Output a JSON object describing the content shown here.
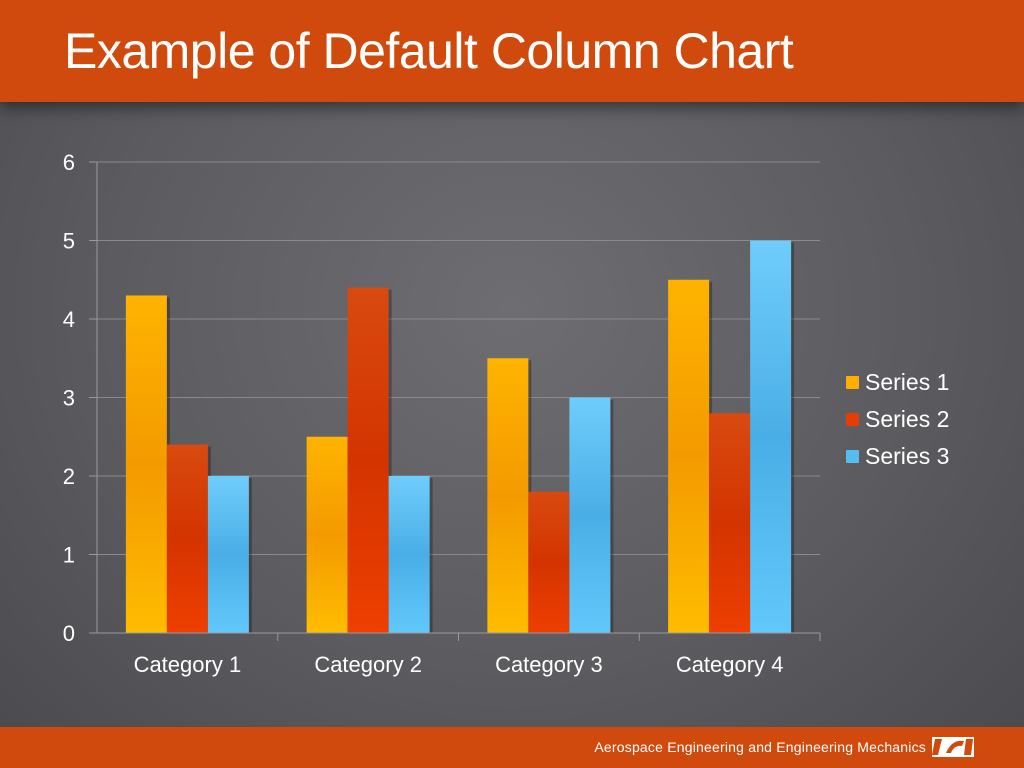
{
  "slide": {
    "title": "Example of Default Column Chart",
    "footer_text": "Aerospace Engineering and Engineering Mechanics",
    "accent_color": "#cf4a0c"
  },
  "chart_data": {
    "type": "bar",
    "title": "",
    "xlabel": "",
    "ylabel": "",
    "categories": [
      "Category 1",
      "Category 2",
      "Category 3",
      "Category 4"
    ],
    "series": [
      {
        "name": "Series 1",
        "values": [
          4.3,
          2.5,
          3.5,
          4.5
        ],
        "color": "#ffad00"
      },
      {
        "name": "Series 2",
        "values": [
          2.4,
          4.4,
          1.8,
          2.8
        ],
        "color": "#e63c05"
      },
      {
        "name": "Series 3",
        "values": [
          2,
          2,
          3,
          5
        ],
        "color": "#55bdf0"
      }
    ],
    "ylim": [
      0,
      6
    ],
    "yticks": [
      "0",
      "1",
      "2",
      "3",
      "4",
      "5",
      "6"
    ],
    "grid": true,
    "legend_position": "right"
  }
}
